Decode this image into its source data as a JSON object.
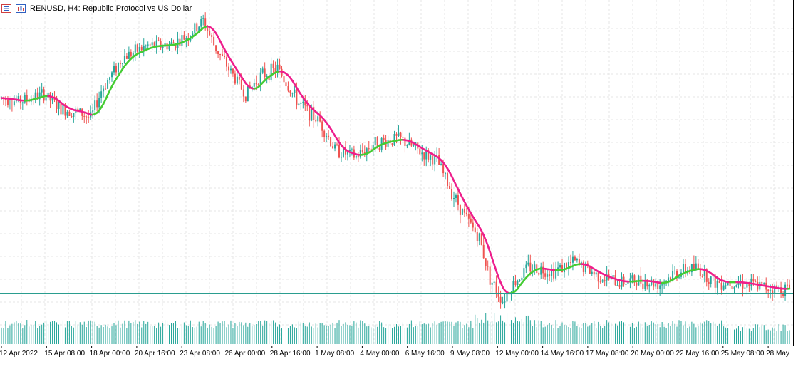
{
  "window": {
    "title": "RENUSD, H4:  Republic Protocol vs US Dollar"
  },
  "icons": [
    "list-icon",
    "symbol-chart-icon"
  ],
  "colors": {
    "bull": "#26a69a",
    "bear": "#ef5350",
    "ma_up": "#44cc33",
    "ma_down": "#ee1e8c",
    "price_line": "#2a9d8f",
    "volume": "#26a69a",
    "grid": "#e6e6e6",
    "axis_text": "#000000",
    "frame": "#000000"
  },
  "chart_data": {
    "type": "candlestick",
    "symbol": "RENUSD",
    "timeframe": "H4",
    "description": "Republic Protocol vs US Dollar",
    "x_tick_labels": [
      "12 Apr 2022",
      "15 Apr 08:00",
      "18 Apr 00:00",
      "20 Apr 16:00",
      "23 Apr 08:00",
      "26 Apr 00:00",
      "28 Apr 16:00",
      "1 May 08:00",
      "4 May 00:00",
      "6 May 16:00",
      "9 May 08:00",
      "12 May 00:00",
      "14 May 16:00",
      "17 May 08:00",
      "20 May 00:00",
      "22 May 16:00",
      "25 May 08:00",
      "28 May"
    ],
    "price_curve_index": [
      0,
      8,
      20,
      28,
      37,
      42,
      47,
      57,
      68,
      80,
      88,
      95,
      100,
      108,
      115,
      122,
      130,
      140,
      150,
      157,
      167,
      175,
      187,
      197,
      205,
      212,
      218,
      225,
      230,
      236,
      240,
      248,
      260,
      270,
      280,
      290,
      300,
      310,
      317,
      327,
      336,
      346,
      356,
      361,
      366,
      371
    ],
    "price_curve_value": [
      0.356,
      0.354,
      0.358,
      0.35,
      0.348,
      0.345,
      0.36,
      0.378,
      0.384,
      0.385,
      0.39,
      0.398,
      0.385,
      0.37,
      0.358,
      0.368,
      0.372,
      0.353,
      0.343,
      0.328,
      0.324,
      0.331,
      0.334,
      0.327,
      0.322,
      0.305,
      0.292,
      0.28,
      0.258,
      0.246,
      0.254,
      0.264,
      0.262,
      0.267,
      0.26,
      0.256,
      0.257,
      0.255,
      0.261,
      0.264,
      0.256,
      0.256,
      0.254,
      0.253,
      0.252,
      0.253
    ],
    "candle_count": 372,
    "volume_level": "moderate with higher bars around 9-12 May",
    "grid": true,
    "current_price_line": true
  }
}
